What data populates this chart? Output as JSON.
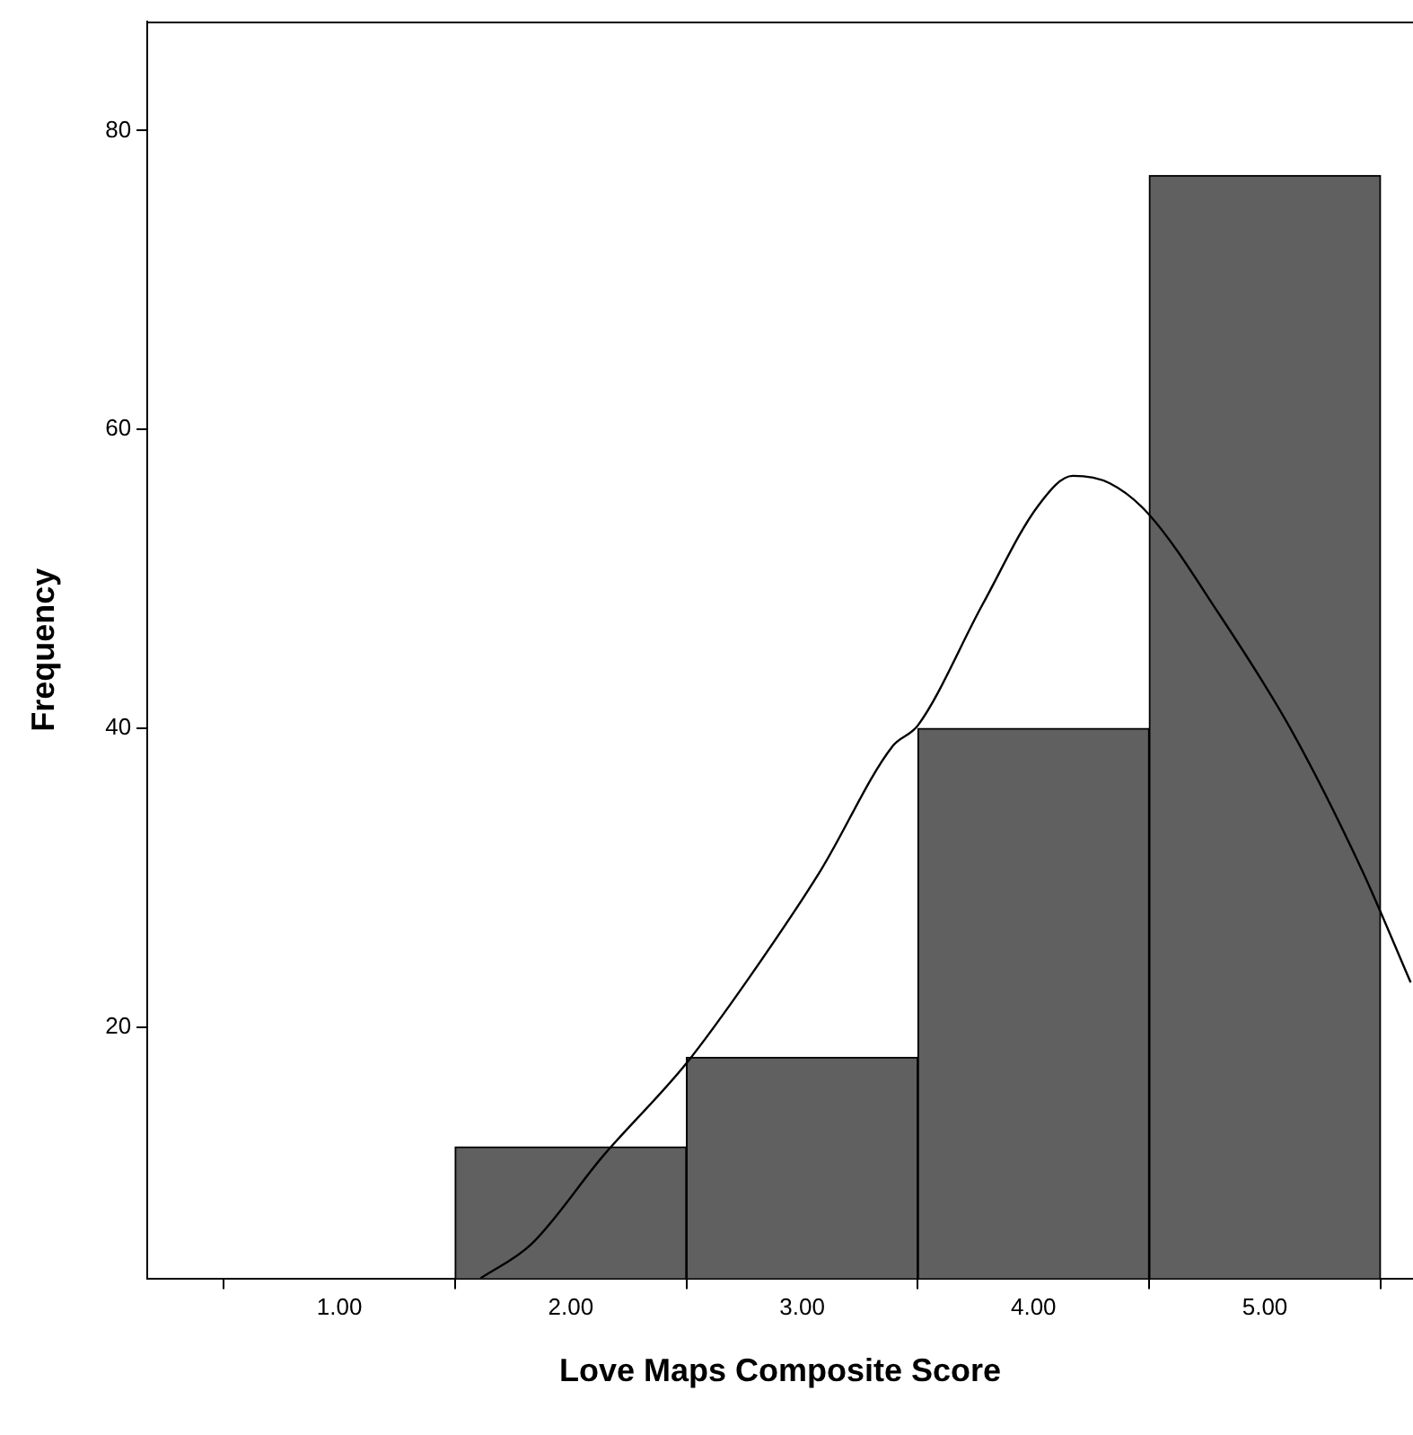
{
  "chart_data": {
    "type": "histogram",
    "xlabel": "Love Maps Composite Score",
    "ylabel": "Frequency",
    "bins": [
      1.5,
      2.5,
      3.5,
      4.5,
      5.5
    ],
    "values": [
      12,
      18,
      40,
      77
    ],
    "color": "#606060",
    "series": [
      {
        "type": "line",
        "color": "#000000",
        "x": [
          1.61,
          1.83,
          2.14,
          2.5,
          2.77,
          3.08,
          3.39,
          3.5,
          3.78,
          4.02,
          4.17,
          4.33,
          4.5,
          4.8,
          5.11,
          5.42,
          5.63
        ],
        "values": [
          3.2,
          5.5,
          11.4,
          17.6,
          23.3,
          30.5,
          38.8,
          40.2,
          48.3,
          54.9,
          56.9,
          56.4,
          54.3,
          47.7,
          40,
          30.5,
          23
        ]
      }
    ],
    "xlim": [
      0.17,
      5.64
    ],
    "xticks": [
      {
        "value": 1,
        "label": "1.00"
      },
      {
        "value": 2,
        "label": "2.00"
      },
      {
        "value": 3,
        "label": "3.00"
      },
      {
        "value": 4,
        "label": "4.00"
      },
      {
        "value": 5,
        "label": "5.00"
      }
    ],
    "ylim": [
      3.2,
      87.3
    ],
    "yticks": [
      20,
      40,
      60,
      80
    ],
    "grid": false,
    "legend": false
  }
}
